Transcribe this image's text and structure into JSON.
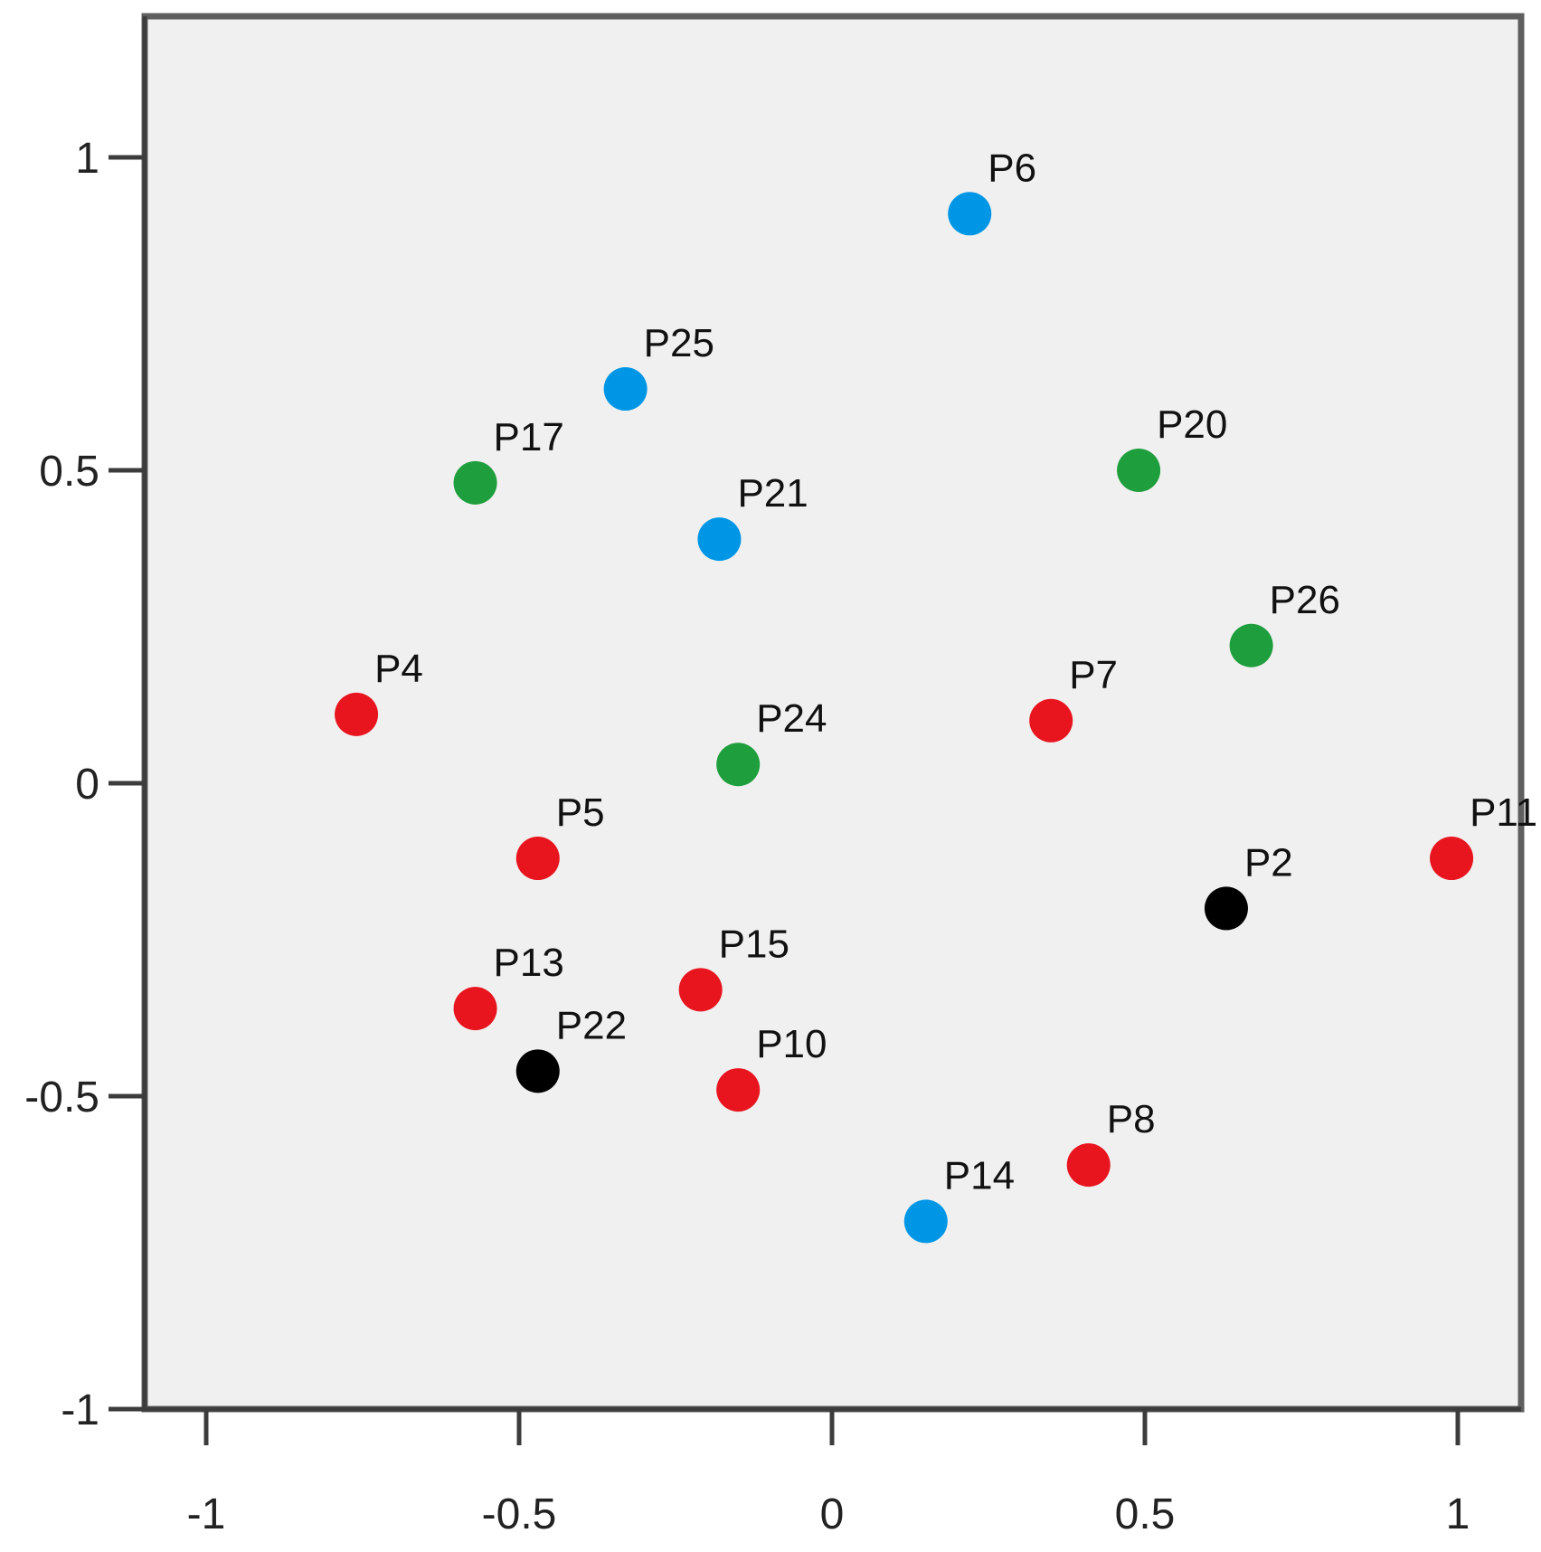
{
  "chart_data": {
    "type": "scatter",
    "title": "",
    "xlabel": "",
    "ylabel": "",
    "xlim": [
      -1.1,
      1.1
    ],
    "ylim": [
      -1,
      1.23
    ],
    "grid": false,
    "x_ticks": [
      {
        "value": -1,
        "label": "-1"
      },
      {
        "value": -0.5,
        "label": "-0.5"
      },
      {
        "value": 0,
        "label": "0"
      },
      {
        "value": 0.5,
        "label": "0.5"
      },
      {
        "value": 1,
        "label": "1"
      }
    ],
    "y_ticks": [
      {
        "value": 1,
        "label": "1"
      },
      {
        "value": 0.5,
        "label": "0.5"
      },
      {
        "value": 0,
        "label": "0"
      },
      {
        "value": -0.5,
        "label": "-0.5"
      },
      {
        "value": -1,
        "label": "-1"
      }
    ],
    "colors": {
      "red": "#e8141e",
      "blue": "#0096e6",
      "green": "#1e9e3c",
      "black": "#000000"
    },
    "points": [
      {
        "label": "P6",
        "x": 0.22,
        "y": 0.91,
        "color": "blue"
      },
      {
        "label": "P25",
        "x": -0.33,
        "y": 0.63,
        "color": "blue"
      },
      {
        "label": "P17",
        "x": -0.57,
        "y": 0.48,
        "color": "green"
      },
      {
        "label": "P20",
        "x": 0.49,
        "y": 0.5,
        "color": "green"
      },
      {
        "label": "P21",
        "x": -0.18,
        "y": 0.39,
        "color": "blue"
      },
      {
        "label": "P26",
        "x": 0.67,
        "y": 0.22,
        "color": "green"
      },
      {
        "label": "P4",
        "x": -0.76,
        "y": 0.11,
        "color": "red"
      },
      {
        "label": "P7",
        "x": 0.35,
        "y": 0.1,
        "color": "red"
      },
      {
        "label": "P24",
        "x": -0.15,
        "y": 0.03,
        "color": "green"
      },
      {
        "label": "P5",
        "x": -0.47,
        "y": -0.12,
        "color": "red"
      },
      {
        "label": "P11",
        "x": 0.99,
        "y": -0.12,
        "color": "red"
      },
      {
        "label": "P2",
        "x": 0.63,
        "y": -0.2,
        "color": "black"
      },
      {
        "label": "P15",
        "x": -0.21,
        "y": -0.33,
        "color": "red"
      },
      {
        "label": "P13",
        "x": -0.57,
        "y": -0.36,
        "color": "red"
      },
      {
        "label": "P22",
        "x": -0.47,
        "y": -0.46,
        "color": "black"
      },
      {
        "label": "P10",
        "x": -0.15,
        "y": -0.49,
        "color": "red"
      },
      {
        "label": "P8",
        "x": 0.41,
        "y": -0.61,
        "color": "red"
      },
      {
        "label": "P14",
        "x": 0.15,
        "y": -0.7,
        "color": "blue"
      }
    ]
  }
}
